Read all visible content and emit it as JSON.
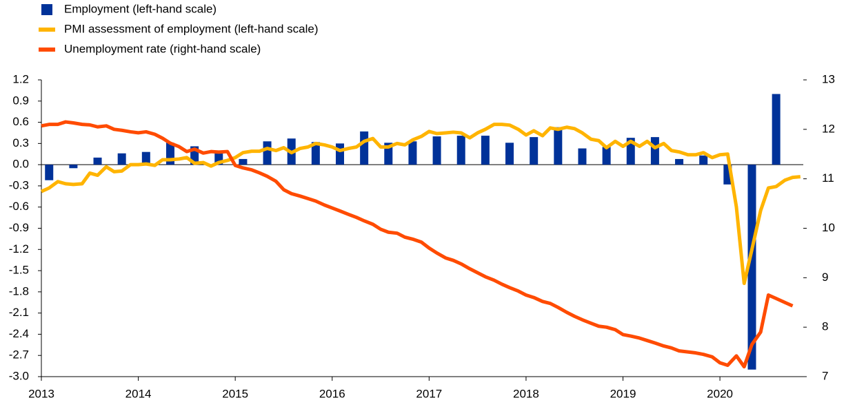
{
  "chart_data": {
    "type": "combo",
    "x": [
      2013,
      2013.08,
      2013.17,
      2013.25,
      2013.33,
      2013.42,
      2013.5,
      2013.58,
      2013.67,
      2013.75,
      2013.83,
      2013.92,
      2014,
      2014.08,
      2014.17,
      2014.25,
      2014.33,
      2014.42,
      2014.5,
      2014.58,
      2014.67,
      2014.75,
      2014.83,
      2014.92,
      2015,
      2015.08,
      2015.17,
      2015.25,
      2015.33,
      2015.42,
      2015.5,
      2015.58,
      2015.67,
      2015.75,
      2015.83,
      2015.92,
      2016,
      2016.08,
      2016.17,
      2016.25,
      2016.33,
      2016.42,
      2016.5,
      2016.58,
      2016.67,
      2016.75,
      2016.83,
      2016.92,
      2017,
      2017.08,
      2017.17,
      2017.25,
      2017.33,
      2017.42,
      2017.5,
      2017.58,
      2017.67,
      2017.75,
      2017.83,
      2017.92,
      2018,
      2018.08,
      2018.17,
      2018.25,
      2018.33,
      2018.42,
      2018.5,
      2018.58,
      2018.67,
      2018.75,
      2018.83,
      2018.92,
      2019,
      2019.08,
      2019.17,
      2019.25,
      2019.33,
      2019.42,
      2019.5,
      2019.58,
      2019.67,
      2019.75,
      2019.83,
      2019.92,
      2020,
      2020.08,
      2020.17,
      2020.25,
      2020.33,
      2020.42,
      2020.5,
      2020.58,
      2020.67,
      2020.75,
      2020.83
    ],
    "series": [
      {
        "name": "Employment (left-hand scale)",
        "type": "bar",
        "color": "#003299",
        "x": [
          2013.08,
          2013.33,
          2013.58,
          2013.83,
          2014.08,
          2014.33,
          2014.58,
          2014.83,
          2015.08,
          2015.33,
          2015.58,
          2015.83,
          2016.08,
          2016.33,
          2016.58,
          2016.83,
          2017.08,
          2017.33,
          2017.58,
          2017.83,
          2018.08,
          2018.33,
          2018.58,
          2018.83,
          2019.08,
          2019.33,
          2019.58,
          2019.83,
          2020.08,
          2020.33,
          2020.58
        ],
        "values": [
          -0.22,
          -0.05,
          0.1,
          0.16,
          0.18,
          0.31,
          0.26,
          0.17,
          0.08,
          0.33,
          0.37,
          0.32,
          0.3,
          0.47,
          0.31,
          0.33,
          0.4,
          0.41,
          0.41,
          0.31,
          0.39,
          0.53,
          0.23,
          0.25,
          0.38,
          0.39,
          0.08,
          0.13,
          -0.28,
          -2.9,
          1.0
        ]
      },
      {
        "name": "PMI assessment of employment (left-hand scale)",
        "type": "line",
        "color": "#ffb400",
        "values": [
          -0.38,
          -0.33,
          -0.24,
          -0.27,
          -0.28,
          -0.27,
          -0.12,
          -0.15,
          -0.03,
          -0.1,
          -0.09,
          0.0,
          0.0,
          0.01,
          -0.01,
          0.07,
          0.07,
          0.08,
          0.1,
          0.02,
          0.03,
          -0.02,
          0.03,
          0.06,
          0.1,
          0.17,
          0.19,
          0.19,
          0.23,
          0.2,
          0.24,
          0.17,
          0.23,
          0.25,
          0.3,
          0.28,
          0.25,
          0.2,
          0.23,
          0.25,
          0.33,
          0.37,
          0.25,
          0.25,
          0.3,
          0.28,
          0.35,
          0.4,
          0.47,
          0.44,
          0.45,
          0.46,
          0.45,
          0.38,
          0.45,
          0.5,
          0.57,
          0.57,
          0.56,
          0.5,
          0.42,
          0.48,
          0.41,
          0.52,
          0.5,
          0.53,
          0.51,
          0.45,
          0.36,
          0.34,
          0.24,
          0.33,
          0.26,
          0.33,
          0.26,
          0.33,
          0.24,
          0.3,
          0.2,
          0.18,
          0.14,
          0.14,
          0.17,
          0.1,
          0.14,
          0.15,
          -0.6,
          -1.68,
          -1.2,
          -0.65,
          -0.33,
          -0.31,
          -0.22,
          -0.18,
          -0.17
        ]
      },
      {
        "name": "Unemployment rate (right-hand scale)",
        "type": "line",
        "axis": "y2",
        "color": "#ff4b00",
        "values": [
          12.07,
          12.1,
          12.1,
          12.15,
          12.13,
          12.1,
          12.09,
          12.05,
          12.07,
          12.0,
          11.98,
          11.95,
          11.93,
          11.95,
          11.9,
          11.82,
          11.72,
          11.65,
          11.55,
          11.6,
          11.52,
          11.55,
          11.54,
          11.55,
          11.27,
          11.22,
          11.18,
          11.12,
          11.05,
          10.95,
          10.78,
          10.7,
          10.65,
          10.6,
          10.55,
          10.47,
          10.41,
          10.35,
          10.28,
          10.22,
          10.15,
          10.08,
          9.98,
          9.92,
          9.9,
          9.82,
          9.78,
          9.72,
          9.6,
          9.5,
          9.4,
          9.35,
          9.28,
          9.18,
          9.1,
          9.02,
          8.95,
          8.87,
          8.8,
          8.73,
          8.65,
          8.6,
          8.52,
          8.48,
          8.4,
          8.3,
          8.22,
          8.15,
          8.08,
          8.02,
          8.0,
          7.95,
          7.85,
          7.82,
          7.78,
          7.73,
          7.68,
          7.62,
          7.58,
          7.52,
          7.5,
          7.48,
          7.45,
          7.4,
          7.28,
          7.23,
          7.42,
          7.2,
          7.65,
          7.9,
          8.65,
          8.58,
          8.5,
          8.43,
          null
        ]
      }
    ],
    "xlim": [
      2013,
      2020.86
    ],
    "xticks": [
      2013,
      2014,
      2015,
      2016,
      2017,
      2018,
      2019,
      2020
    ],
    "ylim": [
      -3.0,
      1.2
    ],
    "yticks": [
      1.2,
      0.9,
      0.6,
      0.3,
      {
        "value": 0,
        "label": "0.0"
      },
      -0.3,
      -0.6,
      -0.9,
      -1.2,
      -1.5,
      -1.8,
      -2.1,
      -2.4,
      -2.7,
      {
        "value": -3,
        "label": "-3.0"
      }
    ],
    "y2lim": [
      7,
      13
    ],
    "y2ticks": [
      7,
      8,
      9,
      10,
      11,
      12,
      13
    ]
  }
}
